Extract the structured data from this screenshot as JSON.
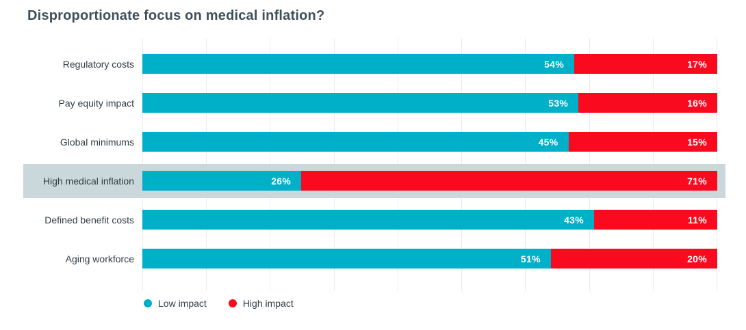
{
  "title": "Disproportionate focus on medical inflation?",
  "chart_data": {
    "type": "bar",
    "orientation": "horizontal",
    "stacked": true,
    "rows_normalized_to_full_width": true,
    "title": "Disproportionate focus on medical inflation?",
    "categories": [
      "Regulatory costs",
      "Pay equity impact",
      "Global minimums",
      "High medical inflation",
      "Defined benefit costs",
      "Aging workforce"
    ],
    "series": [
      {
        "name": "Low impact",
        "color": "#00AFC8",
        "values": [
          54,
          53,
          45,
          26,
          43,
          51
        ]
      },
      {
        "name": "High impact",
        "color": "#FA0A1E",
        "values": [
          17,
          16,
          15,
          71,
          11,
          20
        ]
      }
    ],
    "value_suffix": "%",
    "value_labels": {
      "Low impact": [
        "54%",
        "53%",
        "45%",
        "26%",
        "43%",
        "51%"
      ],
      "High impact": [
        "17%",
        "16%",
        "15%",
        "71%",
        "11%",
        "20%"
      ]
    },
    "highlighted_category": "High medical inflation",
    "highlight_color": "#CBD8DB",
    "legend_position": "bottom-left",
    "grid": {
      "vertical_lines": 10,
      "color": "#E9EDEE"
    },
    "colors": {
      "title_text": "#3E4E5A",
      "category_label_text": "#2E3C44",
      "bar_value_text": "#FFFFFF",
      "background": "#FFFFFF"
    }
  }
}
